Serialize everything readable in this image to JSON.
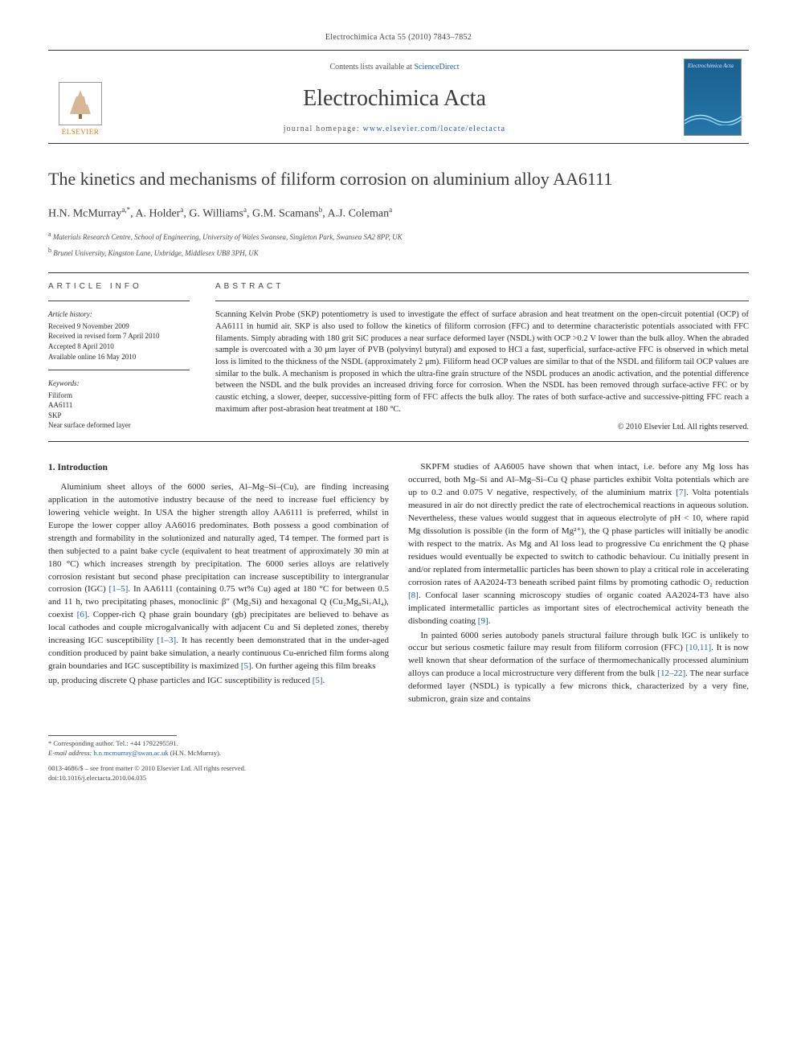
{
  "header": {
    "running": "Electrochimica Acta 55 (2010) 7843–7852"
  },
  "masthead": {
    "contents_prefix": "Contents lists available at ",
    "contents_link": "ScienceDirect",
    "journal": "Electrochimica Acta",
    "homepage_label": "journal homepage: ",
    "homepage_url": "www.elsevier.com/locate/electacta",
    "publisher": "ELSEVIER",
    "cover_title": "Electrochimica Acta"
  },
  "article": {
    "title": "The kinetics and mechanisms of filiform corrosion on aluminium alloy AA6111",
    "authors_html": "H.N. McMurray<sup>a,*</sup>, A. Holder<sup>a</sup>, G. Williams<sup>a</sup>, G.M. Scamans<sup>b</sup>, A.J. Coleman<sup>a</sup>",
    "affiliations": [
      "a Materials Research Centre, School of Engineering, University of Wales Swansea, Singleton Park, Swansea SA2 8PP, UK",
      "b Brunel University, Kingston Lane, Uxbridge, Middlesex UB8 3PH, UK"
    ]
  },
  "info": {
    "heading": "ARTICLE INFO",
    "history_label": "Article history:",
    "history": [
      "Received 9 November 2009",
      "Received in revised form 7 April 2010",
      "Accepted 8 April 2010",
      "Available online 16 May 2010"
    ],
    "keywords_label": "Keywords:",
    "keywords": [
      "Filiform",
      "AA6111",
      "SKP",
      "Near surface deformed layer"
    ]
  },
  "abstract": {
    "heading": "ABSTRACT",
    "text": "Scanning Kelvin Probe (SKP) potentiometry is used to investigate the effect of surface abrasion and heat treatment on the open-circuit potential (OCP) of AA6111 in humid air. SKP is also used to follow the kinetics of filiform corrosion (FFC) and to determine characteristic potentials associated with FFC filaments. Simply abrading with 180 grit SiC produces a near surface deformed layer (NSDL) with OCP >0.2 V lower than the bulk alloy. When the abraded sample is overcoated with a 30 μm layer of PVB (polyvinyl butyral) and exposed to HCl a fast, superficial, surface-active FFC is observed in which metal loss is limited to the thickness of the NSDL (approximately 2 μm). Filiform head OCP values are similar to that of the NSDL and filiform tail OCP values are similar to the bulk. A mechanism is proposed in which the ultra-fine grain structure of the NSDL produces an anodic activation, and the potential difference between the NSDL and the bulk provides an increased driving force for corrosion. When the NSDL has been removed through surface-active FFC or by caustic etching, a slower, deeper, successive-pitting form of FFC affects the bulk alloy. The rates of both surface-active and successive-pitting FFC reach a maximum after post-abrasion heat treatment at 180 °C.",
    "copyright": "© 2010 Elsevier Ltd. All rights reserved."
  },
  "body": {
    "sec1_heading": "1.  Introduction",
    "p1": "Aluminium sheet alloys of the 6000 series, Al–Mg–Si–(Cu), are finding increasing application in the automotive industry because of the need to increase fuel efficiency by lowering vehicle weight. In USA the higher strength alloy AA6111 is preferred, whilst in Europe the lower copper alloy AA6016 predominates. Both possess a good combination of strength and formability in the solutionized and naturally aged, T4 temper. The formed part is then subjected to a paint bake cycle (equivalent to heat treatment of approximately 30 min at 180 °C) which increases strength by precipitation. The 6000 series alloys are relatively corrosion resistant but second phase precipitation can increase susceptibility to intergranular corrosion (IGC) [1–5]. In AA6111 (containing 0.75 wt% Cu) aged at 180 °C for between 0.5 and 11 h, two precipitating phases, monoclinic β″ (Mg₂Si) and hexagonal Q (Cu₂Mg₈Si₇Al₄), coexist [6]. Copper-rich Q phase grain boundary (gb) precipitates are believed to behave as local cathodes and couple microgalvanically with adjacent Cu and Si depleted zones, thereby increasing IGC susceptibility [1–3]. It has recently been demonstrated that in the under-aged condition produced by paint bake simulation, a nearly continuous Cu-enriched film forms along grain boundaries and IGC susceptibility is maximized [5]. On further ageing this film breaks",
    "p2": "up, producing discrete Q phase particles and IGC susceptibility is reduced [5].",
    "p3": "SKPFM studies of AA6005 have shown that when intact, i.e. before any Mg loss has occurred, both Mg–Si and Al–Mg–Si–Cu Q phase particles exhibit Volta potentials which are up to 0.2 and 0.075 V negative, respectively, of the aluminium matrix [7]. Volta potentials measured in air do not directly predict the rate of electrochemical reactions in aqueous solution. Nevertheless, these values would suggest that in aqueous electrolyte of pH < 10, where rapid Mg dissolution is possible (in the form of Mg²⁺), the Q phase particles will initially be anodic with respect to the matrix. As Mg and Al loss lead to progressive Cu enrichment the Q phase residues would eventually be expected to switch to cathodic behaviour. Cu initially present in and/or replated from intermetallic particles has been shown to play a critical role in accelerating corrosion rates of AA2024-T3 beneath scribed paint films by promoting cathodic O₂ reduction [8]. Confocal laser scanning microscopy studies of organic coated AA2024-T3 have also implicated intermetallic particles as important sites of electrochemical activity beneath the disbonding coating [9].",
    "p4": "In painted 6000 series autobody panels structural failure through bulk IGC is unlikely to occur but serious cosmetic failure may result from filiform corrosion (FFC) [10,11]. It is now well known that shear deformation of the surface of thermomechanically processed aluminium alloys can produce a local microstructure very different from the bulk [12–22]. The near surface deformed layer (NSDL) is typically a few microns thick, characterized by a very fine, submicron, grain size and contains"
  },
  "footnotes": {
    "corr": "* Corresponding author. Tel.: +44 1792295591.",
    "email_label": "E-mail address: ",
    "email": "h.n.mcmurray@swan.ac.uk",
    "email_suffix": " (H.N. McMurray)."
  },
  "footer": {
    "issn": "0013-4686/$ – see front matter © 2010 Elsevier Ltd. All rights reserved.",
    "doi": "doi:10.1016/j.electacta.2010.04.035"
  }
}
